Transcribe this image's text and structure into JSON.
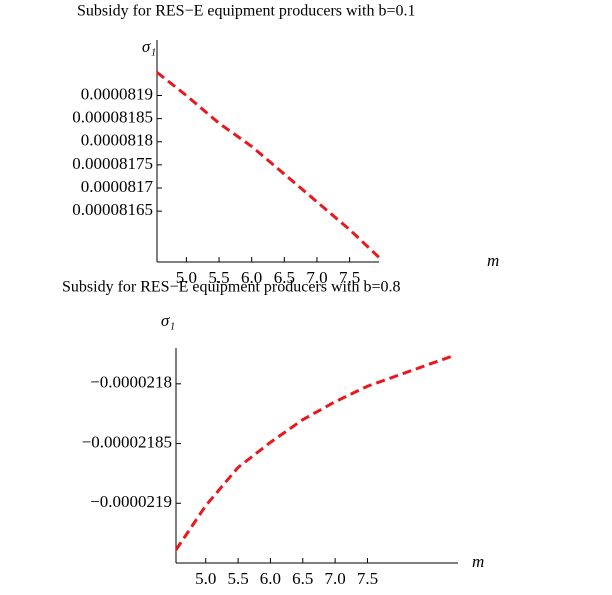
{
  "chart_data": [
    {
      "type": "line",
      "title": "Subsidy for RES−E equipment producers with b=0.1",
      "x_label": "m",
      "y_label": "σ₁",
      "color": "#e8191e",
      "dashed": true,
      "x": [
        4.55,
        5.0,
        5.5,
        6.0,
        6.5,
        7.0,
        7.5,
        7.95
      ],
      "values": [
        8.195e-05,
        8.19e-05,
        8.184e-05,
        8.179e-05,
        8.173e-05,
        8.167e-05,
        8.161e-05,
        8.155e-05
      ],
      "xlim": [
        4.55,
        7.95
      ],
      "xticks": [
        {
          "value": 5,
          "label": "5.0"
        },
        5.5,
        {
          "value": 6,
          "label": "6.0"
        },
        6.5,
        {
          "value": 7,
          "label": "7.0"
        },
        7.5
      ],
      "ylim": [
        8.154e-05,
        8.202e-05
      ],
      "yticks": [
        8.165e-05,
        8.17e-05,
        8.175e-05,
        8.18e-05,
        8.185e-05,
        8.19e-05
      ]
    },
    {
      "type": "line",
      "title": "Subsidy for RES−E equipment producers with b=0.8",
      "x_label": "m",
      "y_label": "σ₁",
      "color": "#e8191e",
      "dashed": true,
      "x": [
        4.54,
        5.0,
        5.5,
        6.0,
        6.5,
        7.0,
        7.5,
        8.8
      ],
      "values": [
        -2.1939e-05,
        -2.1902e-05,
        -2.187e-05,
        -2.1849e-05,
        -2.183e-05,
        -2.1815e-05,
        -2.1802e-05,
        -2.1777e-05
      ],
      "xlim": [
        4.54,
        8.9
      ],
      "xticks": [
        {
          "value": 5,
          "label": "5.0"
        },
        5.5,
        {
          "value": 6,
          "label": "6.0"
        },
        6.5,
        {
          "value": 7,
          "label": "7.0"
        },
        7.5
      ],
      "ylim": [
        -2.195e-05,
        -2.177e-05
      ],
      "yticks": [
        {
          "value": -2.19e-05,
          "label": "−0.0000219"
        },
        {
          "value": -2.185e-05,
          "label": "−0.00002185"
        },
        {
          "value": -2.18e-05,
          "label": "−0.0000218"
        }
      ]
    }
  ]
}
